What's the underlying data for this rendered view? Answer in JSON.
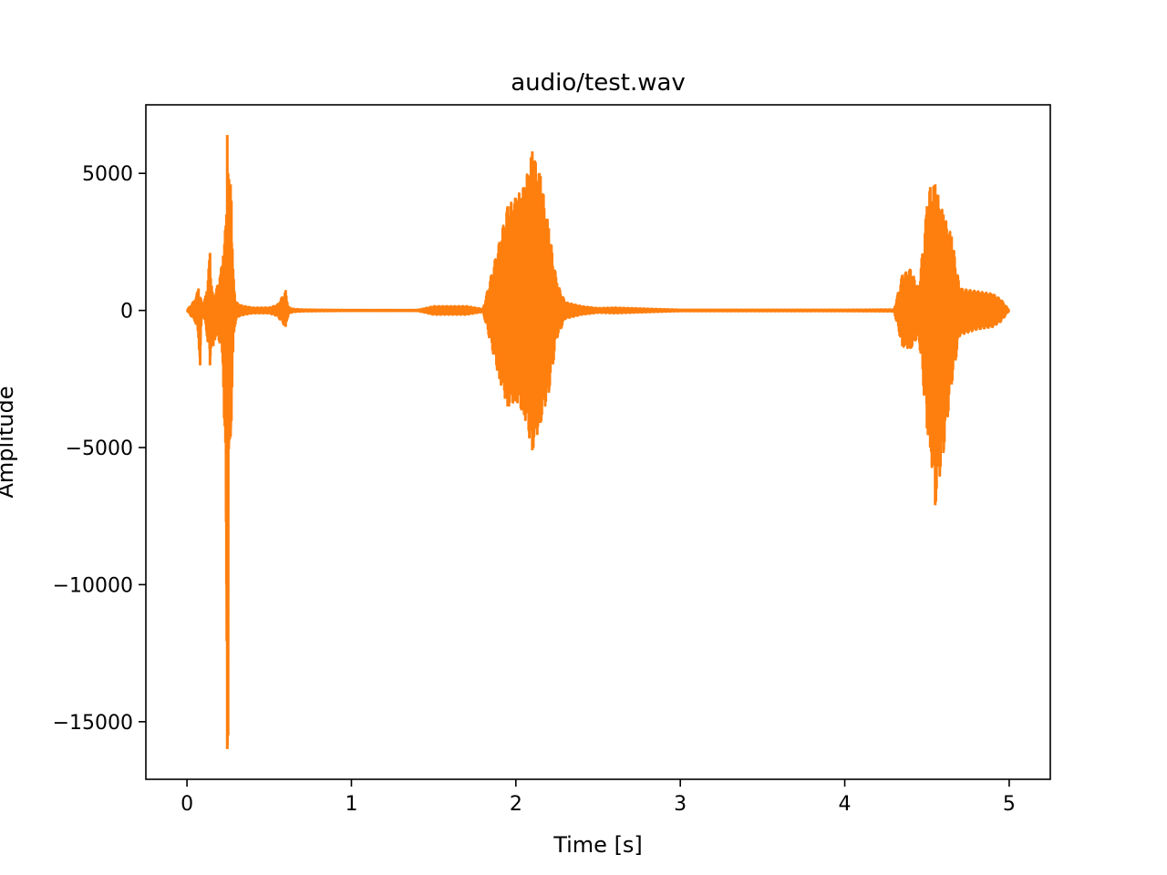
{
  "chart_data": {
    "type": "line",
    "title": "audio/test.wav",
    "xlabel": "Time [s]",
    "ylabel": "Amplitude",
    "xlim": [
      -0.25,
      5.25
    ],
    "ylim": [
      -17100,
      7500
    ],
    "xticks": [
      0,
      1,
      2,
      3,
      4,
      5
    ],
    "yticks": [
      5000,
      0,
      -5000,
      -10000,
      -15000
    ],
    "xtick_labels": [
      "0",
      "1",
      "2",
      "3",
      "4",
      "5"
    ],
    "ytick_labels": [
      "5000",
      "0",
      "−5000",
      "−10000",
      "−15000"
    ],
    "grid": false,
    "legend": "none",
    "series": [
      {
        "color": "#ff7f0e",
        "x": [
          0.0,
          0.05,
          0.07,
          0.08,
          0.09,
          0.1,
          0.12,
          0.14,
          0.15,
          0.16,
          0.18,
          0.2,
          0.22,
          0.24,
          0.245,
          0.25,
          0.255,
          0.26,
          0.265,
          0.27,
          0.28,
          0.29,
          0.3,
          0.32,
          0.35,
          0.4,
          0.45,
          0.5,
          0.55,
          0.6,
          0.61,
          0.62,
          0.65,
          0.7,
          0.8,
          1.0,
          1.2,
          1.4,
          1.5,
          1.6,
          1.7,
          1.8,
          1.9,
          1.95,
          2.0,
          2.05,
          2.1,
          2.15,
          2.2,
          2.25,
          2.3,
          2.4,
          2.5,
          2.6,
          3.0,
          3.5,
          4.0,
          4.3,
          4.35,
          4.4,
          4.45,
          4.5,
          4.52,
          4.55,
          4.6,
          4.65,
          4.7,
          4.8,
          4.9,
          4.95,
          5.0
        ],
        "y_max": [
          0,
          400,
          800,
          500,
          300,
          200,
          700,
          2100,
          900,
          500,
          800,
          1200,
          2000,
          3500,
          6400,
          5000,
          4800,
          4500,
          4600,
          4000,
          1500,
          600,
          300,
          200,
          150,
          100,
          100,
          100,
          200,
          700,
          300,
          100,
          50,
          30,
          20,
          10,
          10,
          10,
          150,
          150,
          150,
          50,
          2500,
          3800,
          4100,
          4500,
          5800,
          4900,
          3000,
          1000,
          300,
          150,
          80,
          100,
          20,
          20,
          20,
          30,
          1300,
          1500,
          800,
          3800,
          4500,
          4600,
          3500,
          2700,
          800,
          700,
          600,
          400,
          0
        ],
        "y_min": [
          0,
          -400,
          -1000,
          -2000,
          -300,
          -200,
          -800,
          -2000,
          -900,
          -1300,
          -800,
          -1200,
          -2000,
          -10000,
          -16000,
          -15500,
          -4800,
          -4700,
          -4600,
          -4000,
          -1500,
          -600,
          -300,
          -200,
          -150,
          -100,
          -100,
          -100,
          -200,
          -600,
          -300,
          -100,
          -50,
          -30,
          -20,
          -10,
          -10,
          -10,
          -150,
          -150,
          -150,
          -50,
          -2500,
          -3500,
          -3300,
          -3800,
          -5100,
          -4100,
          -3000,
          -1000,
          -300,
          -150,
          -80,
          -100,
          -20,
          -20,
          -20,
          -30,
          -1300,
          -1400,
          -900,
          -4300,
          -5000,
          -7100,
          -5200,
          -2700,
          -900,
          -700,
          -600,
          -400,
          0
        ]
      }
    ]
  }
}
